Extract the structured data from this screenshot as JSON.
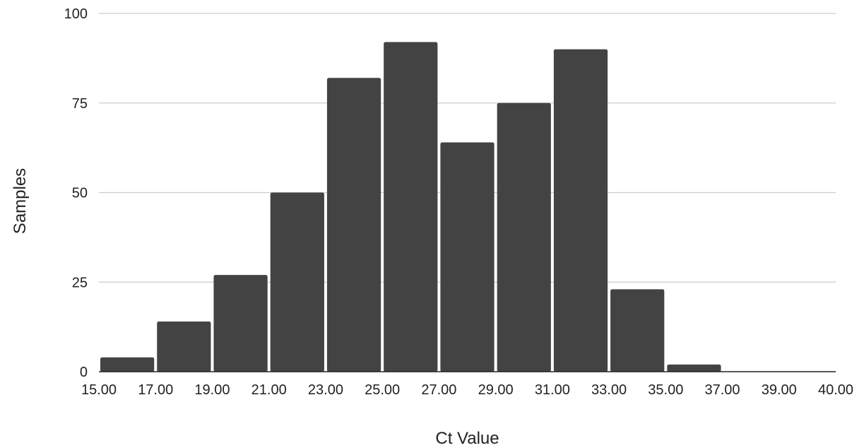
{
  "chart_data": {
    "type": "bar",
    "title": "",
    "xlabel": "Ct Value",
    "ylabel": "Samples",
    "ylim": [
      0,
      100
    ],
    "yticks": [
      "0",
      "25",
      "50",
      "75",
      "100"
    ],
    "grid": true,
    "legend": "none",
    "bin_edges": [
      "15.00",
      "17.00",
      "19.00",
      "21.00",
      "23.00",
      "25.00",
      "27.00",
      "29.00",
      "31.00",
      "33.00",
      "35.00",
      "37.00",
      "39.00",
      "40.00"
    ],
    "values": [
      4,
      14,
      27,
      50,
      82,
      92,
      64,
      75,
      90,
      23,
      2,
      0,
      0
    ],
    "colors": {
      "bar": "#434343",
      "grid": "#cccccc",
      "axis": "#222222"
    }
  }
}
